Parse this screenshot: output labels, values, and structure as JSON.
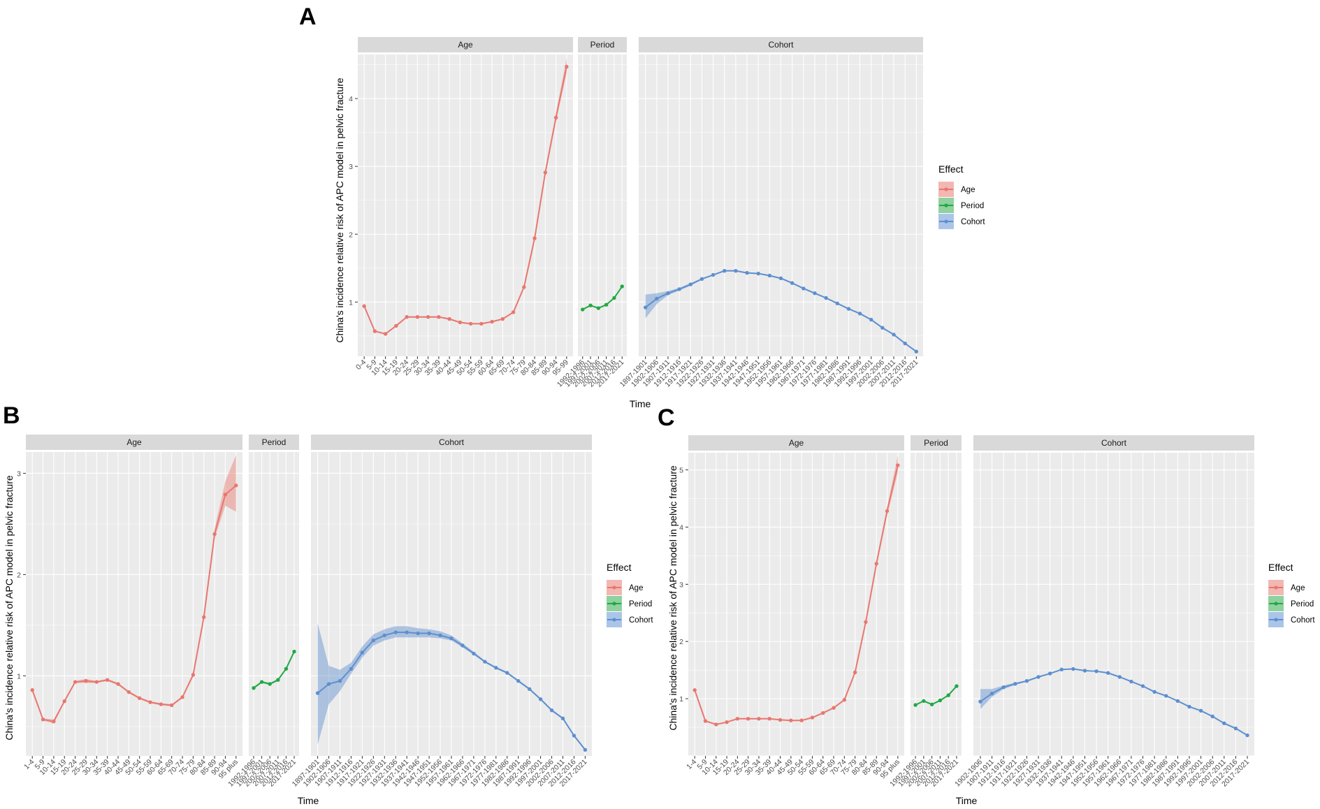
{
  "colors": {
    "age": "#E8776F",
    "period": "#22A845",
    "cohort": "#5E8FCF",
    "panel_bg": "#EBEBEB",
    "strip_bg": "#D9D9D9",
    "grid": "#FFFFFF"
  },
  "chart_data": [
    {
      "type": "line",
      "panel_label": "A",
      "ylabel": "China's incidence relative risk of APC model in pelvic fracture",
      "xlabel": "Time",
      "ylim": [
        0.2,
        4.65
      ],
      "yticks": [
        1,
        2,
        3,
        4
      ],
      "legend": {
        "title": "Effect",
        "items": [
          "Age",
          "Period",
          "Cohort"
        ]
      },
      "facets": [
        {
          "name": "Age",
          "categories": [
            "0-4",
            "5-9",
            "10-14",
            "15-19",
            "20-24",
            "25-29",
            "30-34",
            "35-39",
            "40-44",
            "45-49",
            "50-54",
            "55-59",
            "60-64",
            "65-69",
            "70-74",
            "75-79",
            "80-84",
            "85-89",
            "90-94",
            "95-99"
          ],
          "values": [
            0.94,
            0.57,
            0.53,
            0.65,
            0.78,
            0.78,
            0.78,
            0.78,
            0.75,
            0.7,
            0.68,
            0.68,
            0.71,
            0.75,
            0.85,
            1.22,
            1.94,
            2.91,
            3.72,
            4.47
          ],
          "lower": [
            0.93,
            0.56,
            0.52,
            0.64,
            0.77,
            0.77,
            0.77,
            0.77,
            0.74,
            0.69,
            0.67,
            0.67,
            0.7,
            0.74,
            0.84,
            1.2,
            1.91,
            2.87,
            3.66,
            4.38
          ],
          "upper": [
            0.95,
            0.58,
            0.54,
            0.66,
            0.79,
            0.79,
            0.79,
            0.79,
            0.76,
            0.71,
            0.69,
            0.69,
            0.72,
            0.76,
            0.86,
            1.24,
            1.97,
            2.95,
            3.78,
            4.6
          ]
        },
        {
          "name": "Period",
          "categories": [
            "1992-1996",
            "1997-2001",
            "2002-2006",
            "2007-2011",
            "2012-2016",
            "2017-2021"
          ],
          "values": [
            0.89,
            0.95,
            0.91,
            0.96,
            1.06,
            1.23
          ],
          "lower": [
            0.88,
            0.94,
            0.9,
            0.95,
            1.05,
            1.22
          ],
          "upper": [
            0.9,
            0.96,
            0.92,
            0.97,
            1.07,
            1.24
          ]
        },
        {
          "name": "Cohort",
          "categories": [
            "1897-1901",
            "1902-1906",
            "1907-1911",
            "1912-1916",
            "1917-1921",
            "1922-1926",
            "1927-1931",
            "1932-1936",
            "1937-1941",
            "1942-1946",
            "1947-1951",
            "1952-1956",
            "1957-1961",
            "1962-1966",
            "1967-1971",
            "1972-1976",
            "1977-1981",
            "1982-1986",
            "1987-1991",
            "1992-1996",
            "1997-2001",
            "2002-2006",
            "2007-2011",
            "2012-2016",
            "2017-2021"
          ],
          "values": [
            0.92,
            1.05,
            1.13,
            1.19,
            1.26,
            1.34,
            1.4,
            1.46,
            1.46,
            1.43,
            1.42,
            1.39,
            1.35,
            1.28,
            1.2,
            1.13,
            1.06,
            0.98,
            0.9,
            0.83,
            0.74,
            0.62,
            0.52,
            0.39,
            0.27
          ],
          "lower": [
            0.76,
            0.97,
            1.1,
            1.17,
            1.24,
            1.33,
            1.39,
            1.45,
            1.45,
            1.42,
            1.41,
            1.38,
            1.34,
            1.27,
            1.19,
            1.12,
            1.05,
            0.97,
            0.89,
            0.82,
            0.73,
            0.61,
            0.51,
            0.38,
            0.26
          ],
          "upper": [
            1.11,
            1.13,
            1.16,
            1.21,
            1.28,
            1.35,
            1.41,
            1.47,
            1.47,
            1.44,
            1.43,
            1.4,
            1.36,
            1.29,
            1.21,
            1.14,
            1.07,
            0.99,
            0.91,
            0.84,
            0.75,
            0.63,
            0.53,
            0.4,
            0.28
          ]
        }
      ]
    },
    {
      "type": "line",
      "panel_label": "B",
      "ylabel": "China's incidence relative risk of APC model in pelvic fracture",
      "xlabel": "Time",
      "ylim": [
        0.21,
        3.21
      ],
      "yticks": [
        1,
        2,
        3
      ],
      "legend": {
        "title": "Effect",
        "items": [
          "Age",
          "Period",
          "Cohort"
        ]
      },
      "facets": [
        {
          "name": "Age",
          "categories": [
            "1-4",
            "5-9",
            "10-14",
            "15-19",
            "20-24",
            "25-29",
            "30-34",
            "35-39",
            "40-44",
            "45-49",
            "50-54",
            "55-59",
            "60-64",
            "65-69",
            "70-74",
            "75-79",
            "80-84",
            "85-89",
            "90-94",
            "95 plus"
          ],
          "values": [
            0.86,
            0.57,
            0.55,
            0.75,
            0.94,
            0.95,
            0.94,
            0.96,
            0.92,
            0.84,
            0.78,
            0.74,
            0.72,
            0.71,
            0.79,
            1.01,
            1.58,
            2.4,
            2.79,
            2.88
          ],
          "lower": [
            0.85,
            0.56,
            0.53,
            0.74,
            0.93,
            0.93,
            0.93,
            0.95,
            0.91,
            0.83,
            0.77,
            0.73,
            0.71,
            0.7,
            0.78,
            0.99,
            1.56,
            2.36,
            2.68,
            2.62
          ],
          "upper": [
            0.87,
            0.58,
            0.57,
            0.76,
            0.95,
            0.97,
            0.95,
            0.97,
            0.93,
            0.85,
            0.79,
            0.75,
            0.73,
            0.72,
            0.8,
            1.03,
            1.6,
            2.45,
            2.92,
            3.18
          ]
        },
        {
          "name": "Period",
          "categories": [
            "1992-1996",
            "1997-2001",
            "2002-2006",
            "2007-2011",
            "2012-2016",
            "2017-2021"
          ],
          "values": [
            0.88,
            0.94,
            0.92,
            0.96,
            1.07,
            1.24
          ],
          "lower": [
            0.87,
            0.93,
            0.91,
            0.95,
            1.06,
            1.23
          ],
          "upper": [
            0.89,
            0.95,
            0.93,
            0.97,
            1.08,
            1.25
          ]
        },
        {
          "name": "Cohort",
          "categories": [
            "1897-1901",
            "1902-1906",
            "1907-1911",
            "1912-1916",
            "1917-1921",
            "1922-1926",
            "1927-1931",
            "1932-1936",
            "1937-1941",
            "1942-1946",
            "1947-1951",
            "1952-1956",
            "1957-1961",
            "1962-1966",
            "1967-1971",
            "1972-1976",
            "1977-1981",
            "1982-1986",
            "1987-1991",
            "1992-1996",
            "1997-2001",
            "2002-2006",
            "2007-2011",
            "2012-2016",
            "2017-2021"
          ],
          "values": [
            0.83,
            0.92,
            0.95,
            1.07,
            1.23,
            1.35,
            1.4,
            1.43,
            1.43,
            1.42,
            1.42,
            1.4,
            1.37,
            1.3,
            1.22,
            1.14,
            1.08,
            1.03,
            0.95,
            0.87,
            0.77,
            0.66,
            0.58,
            0.41,
            0.27
          ],
          "lower": [
            0.32,
            0.72,
            0.85,
            1.02,
            1.18,
            1.3,
            1.35,
            1.38,
            1.38,
            1.38,
            1.38,
            1.37,
            1.35,
            1.28,
            1.21,
            1.13,
            1.07,
            1.02,
            0.94,
            0.86,
            0.76,
            0.65,
            0.57,
            0.4,
            0.26
          ],
          "upper": [
            1.52,
            1.1,
            1.06,
            1.13,
            1.29,
            1.41,
            1.46,
            1.49,
            1.49,
            1.47,
            1.46,
            1.44,
            1.4,
            1.32,
            1.24,
            1.15,
            1.09,
            1.04,
            0.96,
            0.88,
            0.78,
            0.67,
            0.59,
            0.42,
            0.28
          ]
        }
      ]
    },
    {
      "type": "line",
      "panel_label": "C",
      "ylabel": "China's incidence relative risk of APC model in pelvic fracture",
      "xlabel": "Time",
      "ylim": [
        0.0,
        5.3
      ],
      "yticks": [
        1,
        2,
        3,
        4,
        5
      ],
      "legend": {
        "title": "Effect",
        "items": [
          "Age",
          "Period",
          "Cohort"
        ]
      },
      "facets": [
        {
          "name": "Age",
          "categories": [
            "1-4",
            "5-9",
            "10-14",
            "15-19",
            "20-24",
            "25-29",
            "30-34",
            "35-39",
            "40-44",
            "45-49",
            "50-54",
            "55-59",
            "60-64",
            "65-69",
            "70-74",
            "75-79",
            "80-84",
            "85-89",
            "90-94",
            "95 plus"
          ],
          "values": [
            1.15,
            0.61,
            0.55,
            0.59,
            0.65,
            0.65,
            0.65,
            0.65,
            0.63,
            0.62,
            0.62,
            0.67,
            0.75,
            0.84,
            0.98,
            1.46,
            2.34,
            3.36,
            4.28,
            5.08
          ],
          "lower": [
            1.14,
            0.6,
            0.54,
            0.58,
            0.64,
            0.64,
            0.64,
            0.64,
            0.62,
            0.61,
            0.61,
            0.66,
            0.74,
            0.83,
            0.97,
            1.44,
            2.31,
            3.31,
            4.21,
            4.95
          ],
          "upper": [
            1.16,
            0.62,
            0.56,
            0.6,
            0.66,
            0.66,
            0.66,
            0.66,
            0.64,
            0.63,
            0.63,
            0.68,
            0.76,
            0.85,
            0.99,
            1.48,
            2.37,
            3.41,
            4.35,
            5.25
          ]
        },
        {
          "name": "Period",
          "categories": [
            "1992-1996",
            "1997-2001",
            "2002-2006",
            "2007-2011",
            "2012-2016",
            "2017-2021"
          ],
          "values": [
            0.89,
            0.96,
            0.9,
            0.97,
            1.06,
            1.22
          ],
          "lower": [
            0.88,
            0.95,
            0.89,
            0.96,
            1.05,
            1.21
          ],
          "upper": [
            0.9,
            0.97,
            0.91,
            0.98,
            1.07,
            1.23
          ]
        },
        {
          "name": "Cohort",
          "categories": [
            "1902-1906",
            "1907-1911",
            "1912-1916",
            "1917-1921",
            "1922-1926",
            "1927-1931",
            "1932-1936",
            "1937-1941",
            "1942-1946",
            "1947-1951",
            "1952-1956",
            "1957-1961",
            "1962-1966",
            "1967-1971",
            "1972-1976",
            "1977-1981",
            "1982-1986",
            "1987-1991",
            "1992-1996",
            "1997-2001",
            "2002-2006",
            "2007-2011",
            "2012-2016",
            "2017-2021"
          ],
          "values": [
            0.95,
            1.09,
            1.2,
            1.26,
            1.31,
            1.38,
            1.44,
            1.51,
            1.52,
            1.49,
            1.48,
            1.45,
            1.38,
            1.3,
            1.22,
            1.12,
            1.05,
            0.96,
            0.86,
            0.79,
            0.69,
            0.57,
            0.48,
            0.36
          ],
          "lower": [
            0.82,
            1.03,
            1.17,
            1.24,
            1.3,
            1.37,
            1.43,
            1.5,
            1.51,
            1.48,
            1.47,
            1.44,
            1.37,
            1.29,
            1.21,
            1.11,
            1.04,
            0.95,
            0.85,
            0.78,
            0.68,
            0.56,
            0.47,
            0.35
          ],
          "upper": [
            1.17,
            1.17,
            1.23,
            1.28,
            1.32,
            1.39,
            1.45,
            1.52,
            1.53,
            1.5,
            1.49,
            1.46,
            1.39,
            1.31,
            1.23,
            1.13,
            1.06,
            0.97,
            0.87,
            0.8,
            0.7,
            0.58,
            0.49,
            0.37
          ]
        }
      ]
    }
  ]
}
